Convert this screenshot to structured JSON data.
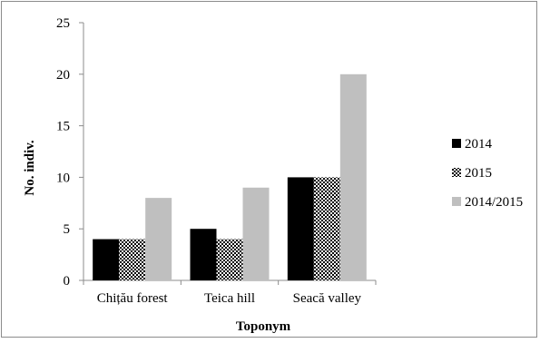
{
  "chart_data": {
    "type": "bar",
    "title": "",
    "xlabel": "Toponym",
    "ylabel": "No. indiv.",
    "categories": [
      "Chițău forest",
      "Teica hill",
      "Seacă valley"
    ],
    "series": [
      {
        "name": "2014",
        "values": [
          4,
          5,
          10
        ],
        "color": "#000000",
        "pattern": "solid"
      },
      {
        "name": "2015",
        "values": [
          4,
          4,
          10
        ],
        "color": "#000000",
        "pattern": "checkered"
      },
      {
        "name": "2014/2015",
        "values": [
          8,
          9,
          20
        ],
        "color": "#bfbfbf",
        "pattern": "solid"
      }
    ],
    "ylim": [
      0,
      25
    ],
    "yticks": [
      0,
      5,
      10,
      15,
      20,
      25
    ],
    "grid": false,
    "legend_position": "right"
  }
}
